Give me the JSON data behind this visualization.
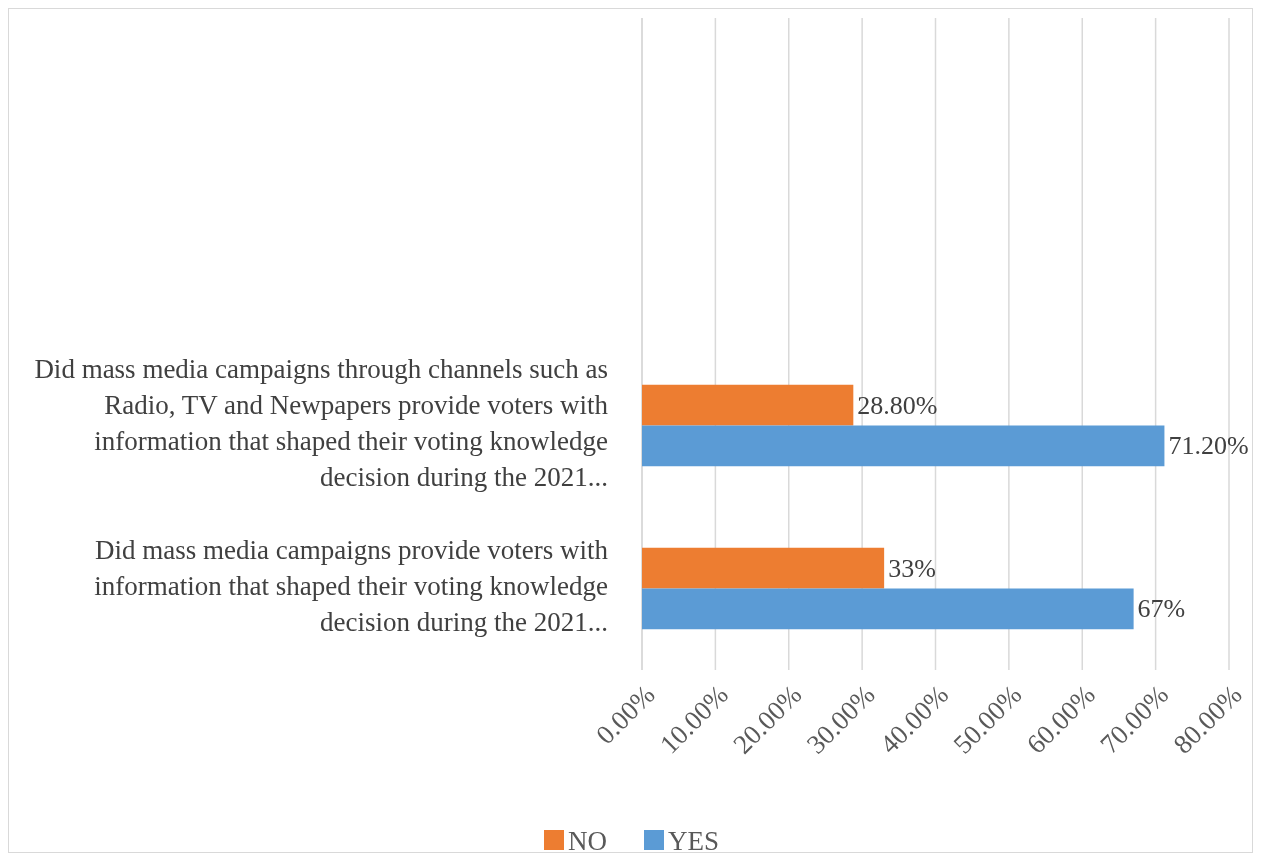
{
  "chart_data": {
    "type": "bar",
    "orientation": "horizontal",
    "categories": [
      null,
      null,
      "Did mass media campaigns through channels such as Radio, TV and Newpapers provide voters with information that shaped their voting knowledge decision during the 2021...",
      "Did mass media campaigns provide voters with information that shaped their voting knowledge decision during the 2021..."
    ],
    "series": [
      {
        "name": "NO",
        "color": "#ed7d31",
        "values": [
          null,
          null,
          28.8,
          33
        ],
        "value_labels": [
          null,
          null,
          "28.80%",
          "33%"
        ]
      },
      {
        "name": "YES",
        "color": "#5b9bd5",
        "values": [
          null,
          null,
          71.2,
          67
        ],
        "value_labels": [
          null,
          null,
          "71.20%",
          "67%"
        ]
      }
    ],
    "xlim": [
      0,
      80
    ],
    "xticks": [
      {
        "value": 0,
        "label": "0.00%"
      },
      {
        "value": 10,
        "label": "10.00%"
      },
      {
        "value": 20,
        "label": "20.00%"
      },
      {
        "value": 30,
        "label": "30.00%"
      },
      {
        "value": 40,
        "label": "40.00%"
      },
      {
        "value": 50,
        "label": "50.00%"
      },
      {
        "value": 60,
        "label": "60.00%"
      },
      {
        "value": 70,
        "label": "70.00%"
      },
      {
        "value": 80,
        "label": "80.00%"
      }
    ],
    "grid": "x",
    "legend": "bottom"
  }
}
